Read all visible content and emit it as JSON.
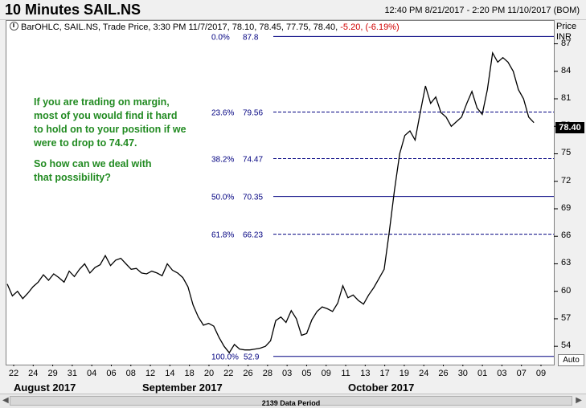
{
  "header": {
    "title": "10 Minutes SAIL.NS",
    "date_range": "12:40 PM 8/21/2017 - 2:20 PM 11/10/2017 (BOM)"
  },
  "ohlc_bar": {
    "text": "BarOHLC, SAIL.NS, Trade Price, 3:30 PM 11/7/2017, 78.10, 78.45, 77.75, 78.40,",
    "change": "-5.20, (-6.19%)"
  },
  "annotation": {
    "line1": "If you are trading on margin,\nmost of you would find it hard\nto hold on to your position if we\nwere to drop to 74.47.",
    "line2": "So how can we deal with\nthat possibility?"
  },
  "y_axis_header": {
    "price": "Price",
    "unit": "INR"
  },
  "last_price": "78.40",
  "auto_button": "Auto",
  "scrollbar": {
    "label": "2139 Data Period"
  },
  "colors": {
    "fib_line": "#000080",
    "fib_text": "#000080",
    "annotation": "#228b22",
    "price_line": "#000000"
  },
  "chart_data": {
    "type": "line",
    "title": "10 Minutes SAIL.NS",
    "ylabel": "Price INR",
    "ylim": [
      52,
      89.5
    ],
    "y_ticks": [
      54,
      57,
      60,
      63,
      66,
      69,
      72,
      75,
      78,
      81,
      84,
      87
    ],
    "x_ticks": [
      "22",
      "24",
      "29",
      "31",
      "04",
      "06",
      "08",
      "12",
      "14",
      "18",
      "20",
      "22",
      "26",
      "28",
      "03",
      "05",
      "09",
      "11",
      "13",
      "17",
      "19",
      "24",
      "26",
      "30",
      "01",
      "03",
      "07",
      "09"
    ],
    "months": [
      "August 2017",
      "September 2017",
      "October 2017"
    ],
    "fib_levels": [
      {
        "pct": "0.0%",
        "value": 87.8
      },
      {
        "pct": "23.6%",
        "value": 79.56
      },
      {
        "pct": "38.2%",
        "value": 74.47
      },
      {
        "pct": "50.0%",
        "value": 70.35
      },
      {
        "pct": "61.8%",
        "value": 66.23
      },
      {
        "pct": "100.0%",
        "value": 52.9
      }
    ],
    "series": [
      {
        "values": [
          [
            0,
            60.8
          ],
          [
            1,
            59.5
          ],
          [
            2,
            60.0
          ],
          [
            3,
            59.2
          ],
          [
            4,
            59.8
          ],
          [
            5,
            60.5
          ],
          [
            6,
            61.0
          ],
          [
            7,
            61.8
          ],
          [
            8,
            61.2
          ],
          [
            9,
            61.9
          ],
          [
            10,
            61.5
          ],
          [
            11,
            61.0
          ],
          [
            12,
            62.2
          ],
          [
            13,
            61.6
          ],
          [
            14,
            62.4
          ],
          [
            15,
            63.0
          ],
          [
            16,
            62.0
          ],
          [
            17,
            62.6
          ],
          [
            18,
            62.9
          ],
          [
            19,
            63.9
          ],
          [
            20,
            62.8
          ],
          [
            21,
            63.4
          ],
          [
            22,
            63.6
          ],
          [
            23,
            63.0
          ],
          [
            24,
            62.4
          ],
          [
            25,
            62.5
          ],
          [
            26,
            62.0
          ],
          [
            27,
            61.9
          ],
          [
            28,
            62.2
          ],
          [
            29,
            62.0
          ],
          [
            30,
            61.7
          ],
          [
            31,
            63.0
          ],
          [
            32,
            62.3
          ],
          [
            33,
            62.0
          ],
          [
            34,
            61.5
          ],
          [
            35,
            60.5
          ],
          [
            36,
            58.5
          ],
          [
            37,
            57.2
          ],
          [
            38,
            56.3
          ],
          [
            39,
            56.5
          ],
          [
            40,
            56.2
          ],
          [
            41,
            55.0
          ],
          [
            42,
            54.0
          ],
          [
            43,
            53.3
          ],
          [
            44,
            54.2
          ],
          [
            45,
            53.7
          ],
          [
            46,
            53.6
          ],
          [
            47,
            53.6
          ],
          [
            48,
            53.7
          ],
          [
            49,
            53.8
          ],
          [
            50,
            54.0
          ],
          [
            51,
            54.6
          ],
          [
            52,
            56.8
          ],
          [
            53,
            57.2
          ],
          [
            54,
            56.6
          ],
          [
            55,
            57.9
          ],
          [
            56,
            57.0
          ],
          [
            57,
            55.2
          ],
          [
            58,
            55.4
          ],
          [
            59,
            56.9
          ],
          [
            60,
            57.8
          ],
          [
            61,
            58.3
          ],
          [
            62,
            58.1
          ],
          [
            63,
            57.8
          ],
          [
            64,
            58.7
          ],
          [
            65,
            60.6
          ],
          [
            66,
            59.3
          ],
          [
            67,
            59.6
          ],
          [
            68,
            59.0
          ],
          [
            69,
            58.6
          ],
          [
            70,
            59.6
          ],
          [
            71,
            60.4
          ],
          [
            72,
            61.4
          ],
          [
            73,
            62.4
          ],
          [
            74,
            66.5
          ],
          [
            75,
            71.0
          ],
          [
            76,
            75.0
          ],
          [
            77,
            77.0
          ],
          [
            78,
            77.5
          ],
          [
            79,
            76.5
          ],
          [
            80,
            79.5
          ],
          [
            81,
            82.4
          ],
          [
            82,
            80.5
          ],
          [
            83,
            81.2
          ],
          [
            84,
            79.5
          ],
          [
            85,
            79.0
          ],
          [
            86,
            78.0
          ],
          [
            87,
            78.5
          ],
          [
            88,
            79.0
          ],
          [
            89,
            80.5
          ],
          [
            90,
            81.8
          ],
          [
            91,
            80.0
          ],
          [
            92,
            79.3
          ],
          [
            93,
            82.0
          ],
          [
            94,
            86.0
          ],
          [
            95,
            85.0
          ],
          [
            96,
            85.5
          ],
          [
            97,
            85.0
          ],
          [
            98,
            84.0
          ],
          [
            99,
            82.0
          ],
          [
            100,
            81.0
          ],
          [
            101,
            79.0
          ],
          [
            102,
            78.4
          ]
        ]
      }
    ]
  }
}
